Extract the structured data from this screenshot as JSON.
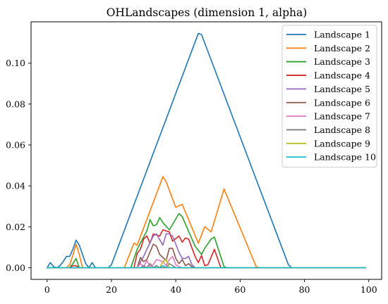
{
  "chart_data": {
    "type": "line",
    "title": "OHLandscapes (dimension 1, alpha)",
    "xlabel": "",
    "ylabel": "",
    "xlim": [
      -5,
      104
    ],
    "ylim": [
      -0.0057,
      0.1202
    ],
    "xticks": [
      0,
      20,
      40,
      60,
      80,
      100
    ],
    "yticks": [
      0.0,
      0.02,
      0.04,
      0.06,
      0.08,
      0.1
    ],
    "xtick_labels": [
      "0",
      "20",
      "40",
      "60",
      "80",
      "100"
    ],
    "ytick_labels": [
      "0.00",
      "0.02",
      "0.04",
      "0.06",
      "0.08",
      "0.10"
    ],
    "grid": false,
    "legend_position": "top-right",
    "series": [
      {
        "name": "Landscape 1",
        "color": "#1f77b4",
        "points": [
          [
            0,
            0
          ],
          [
            1,
            0.0025
          ],
          [
            2,
            0.0005
          ],
          [
            3,
            0
          ],
          [
            4,
            0.001
          ],
          [
            5,
            0.003
          ],
          [
            6,
            0.0055
          ],
          [
            7,
            0.0055
          ],
          [
            8,
            0.009
          ],
          [
            9,
            0.0135
          ],
          [
            10,
            0.011
          ],
          [
            11,
            0.0065
          ],
          [
            12,
            0.002
          ],
          [
            13,
            0
          ],
          [
            14,
            0.0025
          ],
          [
            15,
            0
          ],
          [
            19,
            0
          ],
          [
            20,
            0.0015
          ],
          [
            47,
            0.1145
          ],
          [
            48,
            0.114
          ],
          [
            75,
            0.0015
          ],
          [
            76,
            0
          ],
          [
            99,
            0
          ]
        ]
      },
      {
        "name": "Landscape 2",
        "color": "#ff7f0e",
        "points": [
          [
            0,
            0
          ],
          [
            6,
            0
          ],
          [
            7,
            0.0015
          ],
          [
            8,
            0.006
          ],
          [
            9,
            0.0115
          ],
          [
            10,
            0.0065
          ],
          [
            11,
            0
          ],
          [
            24,
            0
          ],
          [
            27,
            0.012
          ],
          [
            28,
            0.011
          ],
          [
            36,
            0.0445
          ],
          [
            37,
            0.042
          ],
          [
            40,
            0.0295
          ],
          [
            42,
            0.031
          ],
          [
            47,
            0.012
          ],
          [
            49,
            0.02
          ],
          [
            51,
            0.0175
          ],
          [
            55,
            0.0385
          ],
          [
            65,
            0.0005
          ],
          [
            66,
            0
          ],
          [
            99,
            0
          ]
        ]
      },
      {
        "name": "Landscape 3",
        "color": "#2ca02c",
        "points": [
          [
            0,
            0
          ],
          [
            7,
            0
          ],
          [
            8,
            0.002
          ],
          [
            9,
            0.0045
          ],
          [
            10,
            0
          ],
          [
            26,
            0
          ],
          [
            28,
            0.009
          ],
          [
            31,
            0.018
          ],
          [
            32,
            0.0235
          ],
          [
            33,
            0.0205
          ],
          [
            34,
            0.021
          ],
          [
            35,
            0.0245
          ],
          [
            36,
            0.022
          ],
          [
            38,
            0.0185
          ],
          [
            41,
            0.0265
          ],
          [
            42,
            0.025
          ],
          [
            46,
            0.0105
          ],
          [
            47,
            0.0085
          ],
          [
            48,
            0.0065
          ],
          [
            49,
            0.0095
          ],
          [
            51,
            0.014
          ],
          [
            52,
            0.015
          ],
          [
            55,
            0.0005
          ],
          [
            56,
            0
          ],
          [
            99,
            0
          ]
        ]
      },
      {
        "name": "Landscape 4",
        "color": "#d62728",
        "points": [
          [
            0,
            0
          ],
          [
            7,
            0
          ],
          [
            8,
            0.001
          ],
          [
            9,
            0.001
          ],
          [
            10,
            0
          ],
          [
            27,
            0
          ],
          [
            28,
            0.007
          ],
          [
            29,
            0.009
          ],
          [
            30,
            0.014
          ],
          [
            31,
            0.0155
          ],
          [
            32,
            0.012
          ],
          [
            33,
            0.0165
          ],
          [
            35,
            0.0155
          ],
          [
            36,
            0.0185
          ],
          [
            38,
            0.0175
          ],
          [
            39,
            0.013
          ],
          [
            41,
            0.0155
          ],
          [
            42,
            0.0125
          ],
          [
            43,
            0.0145
          ],
          [
            44,
            0.014
          ],
          [
            46,
            0.0055
          ],
          [
            47,
            0.0025
          ],
          [
            48,
            0.006
          ],
          [
            49,
            0.001
          ],
          [
            50,
            0.0015
          ],
          [
            52,
            0.009
          ],
          [
            54,
            0
          ],
          [
            99,
            0
          ]
        ]
      },
      {
        "name": "Landscape 5",
        "color": "#9467bd",
        "points": [
          [
            0,
            0
          ],
          [
            28,
            0
          ],
          [
            30,
            0.0055
          ],
          [
            31,
            0.009
          ],
          [
            33,
            0.0155
          ],
          [
            34,
            0.0165
          ],
          [
            36,
            0.011
          ],
          [
            37,
            0.0165
          ],
          [
            38,
            0.0165
          ],
          [
            39,
            0.0155
          ],
          [
            41,
            0.0075
          ],
          [
            42,
            0.0045
          ],
          [
            43,
            0.0045
          ],
          [
            44,
            0.0055
          ],
          [
            45,
            0.0015
          ],
          [
            46,
            0
          ],
          [
            99,
            0
          ]
        ]
      },
      {
        "name": "Landscape 6",
        "color": "#8c564b",
        "points": [
          [
            0,
            0
          ],
          [
            28,
            0
          ],
          [
            29,
            0.005
          ],
          [
            30,
            0.003
          ],
          [
            31,
            0.004
          ],
          [
            33,
            0.0115
          ],
          [
            34,
            0.0105
          ],
          [
            35,
            0.0065
          ],
          [
            37,
            0.0035
          ],
          [
            38,
            0.0095
          ],
          [
            39,
            0.0095
          ],
          [
            40,
            0.0045
          ],
          [
            41,
            0.002
          ],
          [
            42,
            0.004
          ],
          [
            43,
            0.001
          ],
          [
            44,
            0.002
          ],
          [
            45,
            0.0005
          ],
          [
            46,
            0
          ],
          [
            99,
            0
          ]
        ]
      },
      {
        "name": "Landscape 7",
        "color": "#e377c2",
        "points": [
          [
            0,
            0
          ],
          [
            28,
            0
          ],
          [
            29,
            0.002
          ],
          [
            30,
            0.0005
          ],
          [
            31,
            0.0035
          ],
          [
            32,
            0.0005
          ],
          [
            33,
            0.0015
          ],
          [
            34,
            0.004
          ],
          [
            35,
            0.0035
          ],
          [
            36,
            0.003
          ],
          [
            37,
            0.001
          ],
          [
            38,
            0.004
          ],
          [
            39,
            0.0055
          ],
          [
            40,
            0.0015
          ],
          [
            41,
            0.0005
          ],
          [
            42,
            0
          ],
          [
            99,
            0
          ]
        ]
      },
      {
        "name": "Landscape 8",
        "color": "#7f7f7f",
        "points": [
          [
            0,
            0
          ],
          [
            29,
            0
          ],
          [
            30,
            0.001
          ],
          [
            31,
            0
          ],
          [
            32,
            0.002
          ],
          [
            33,
            0
          ],
          [
            34,
            0.001
          ],
          [
            35,
            0
          ],
          [
            37,
            0
          ],
          [
            38,
            0.002
          ],
          [
            39,
            0.001
          ],
          [
            40,
            0
          ],
          [
            99,
            0
          ]
        ]
      },
      {
        "name": "Landscape 9",
        "color": "#bcbd22",
        "points": [
          [
            0,
            0
          ],
          [
            35,
            0
          ],
          [
            36,
            0.003
          ],
          [
            37,
            0.004
          ],
          [
            38,
            0
          ],
          [
            99,
            0
          ]
        ]
      },
      {
        "name": "Landscape 10",
        "color": "#17becf",
        "points": [
          [
            0,
            0
          ],
          [
            35,
            0
          ],
          [
            36,
            0.001
          ],
          [
            37,
            0
          ],
          [
            99,
            0
          ]
        ]
      }
    ]
  }
}
